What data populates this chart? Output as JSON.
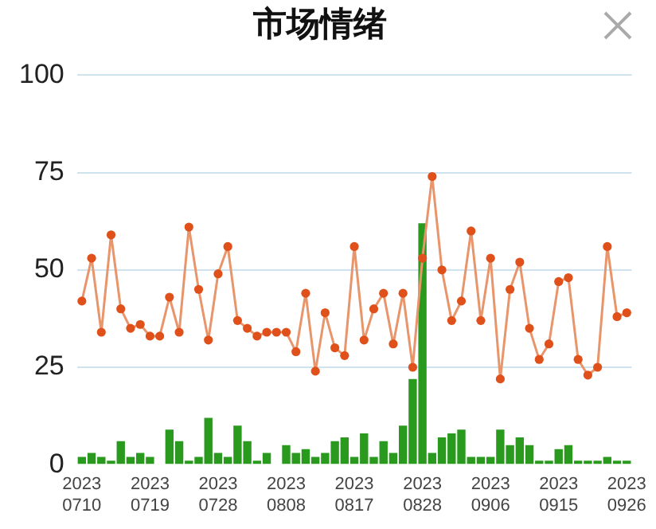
{
  "chart_data": {
    "type": "line",
    "title": "市场情绪",
    "categories": [
      "2023\n0710",
      null,
      null,
      null,
      null,
      null,
      null,
      "2023\n0719",
      null,
      null,
      null,
      null,
      null,
      null,
      "2023\n0728",
      null,
      null,
      null,
      null,
      null,
      null,
      "2023\n0808",
      null,
      null,
      null,
      null,
      null,
      null,
      "2023\n0817",
      null,
      null,
      null,
      null,
      null,
      null,
      "2023\n0828",
      null,
      null,
      null,
      null,
      null,
      null,
      "2023\n0906",
      null,
      null,
      null,
      null,
      null,
      null,
      "2023\n0915",
      null,
      null,
      null,
      null,
      null,
      null,
      "2023\n0926"
    ],
    "series": [
      {
        "type": "bar",
        "color": "#2a9a1e",
        "values": [
          2,
          3,
          2,
          1,
          6,
          2,
          3,
          2,
          0,
          9,
          6,
          1,
          2,
          12,
          3,
          2,
          10,
          6,
          1,
          3,
          0,
          5,
          3,
          4,
          2,
          3,
          6,
          7,
          2,
          8,
          2,
          6,
          3,
          10,
          22,
          62,
          3,
          7,
          8,
          9,
          2,
          2,
          2,
          9,
          5,
          7,
          5,
          1,
          1,
          4,
          5,
          1,
          1,
          1,
          2,
          1,
          1
        ]
      },
      {
        "color": "#e8956b",
        "values": [
          42,
          53,
          34,
          59,
          40,
          35,
          36,
          33,
          33,
          43,
          34,
          61,
          45,
          32,
          49,
          56,
          37,
          35,
          33,
          34,
          34,
          34,
          29,
          44,
          24,
          39,
          30,
          28,
          56,
          32,
          40,
          44,
          31,
          44,
          25,
          53,
          74,
          50,
          37,
          42,
          60,
          37,
          53,
          22,
          45,
          52,
          35,
          27,
          31,
          47,
          48,
          27,
          23,
          25,
          56,
          38,
          39
        ]
      }
    ],
    "ylim": [
      0,
      100
    ],
    "yticks": [
      0,
      25,
      50,
      75,
      100
    ],
    "grid": "y",
    "legend": false,
    "marker": "circle"
  }
}
